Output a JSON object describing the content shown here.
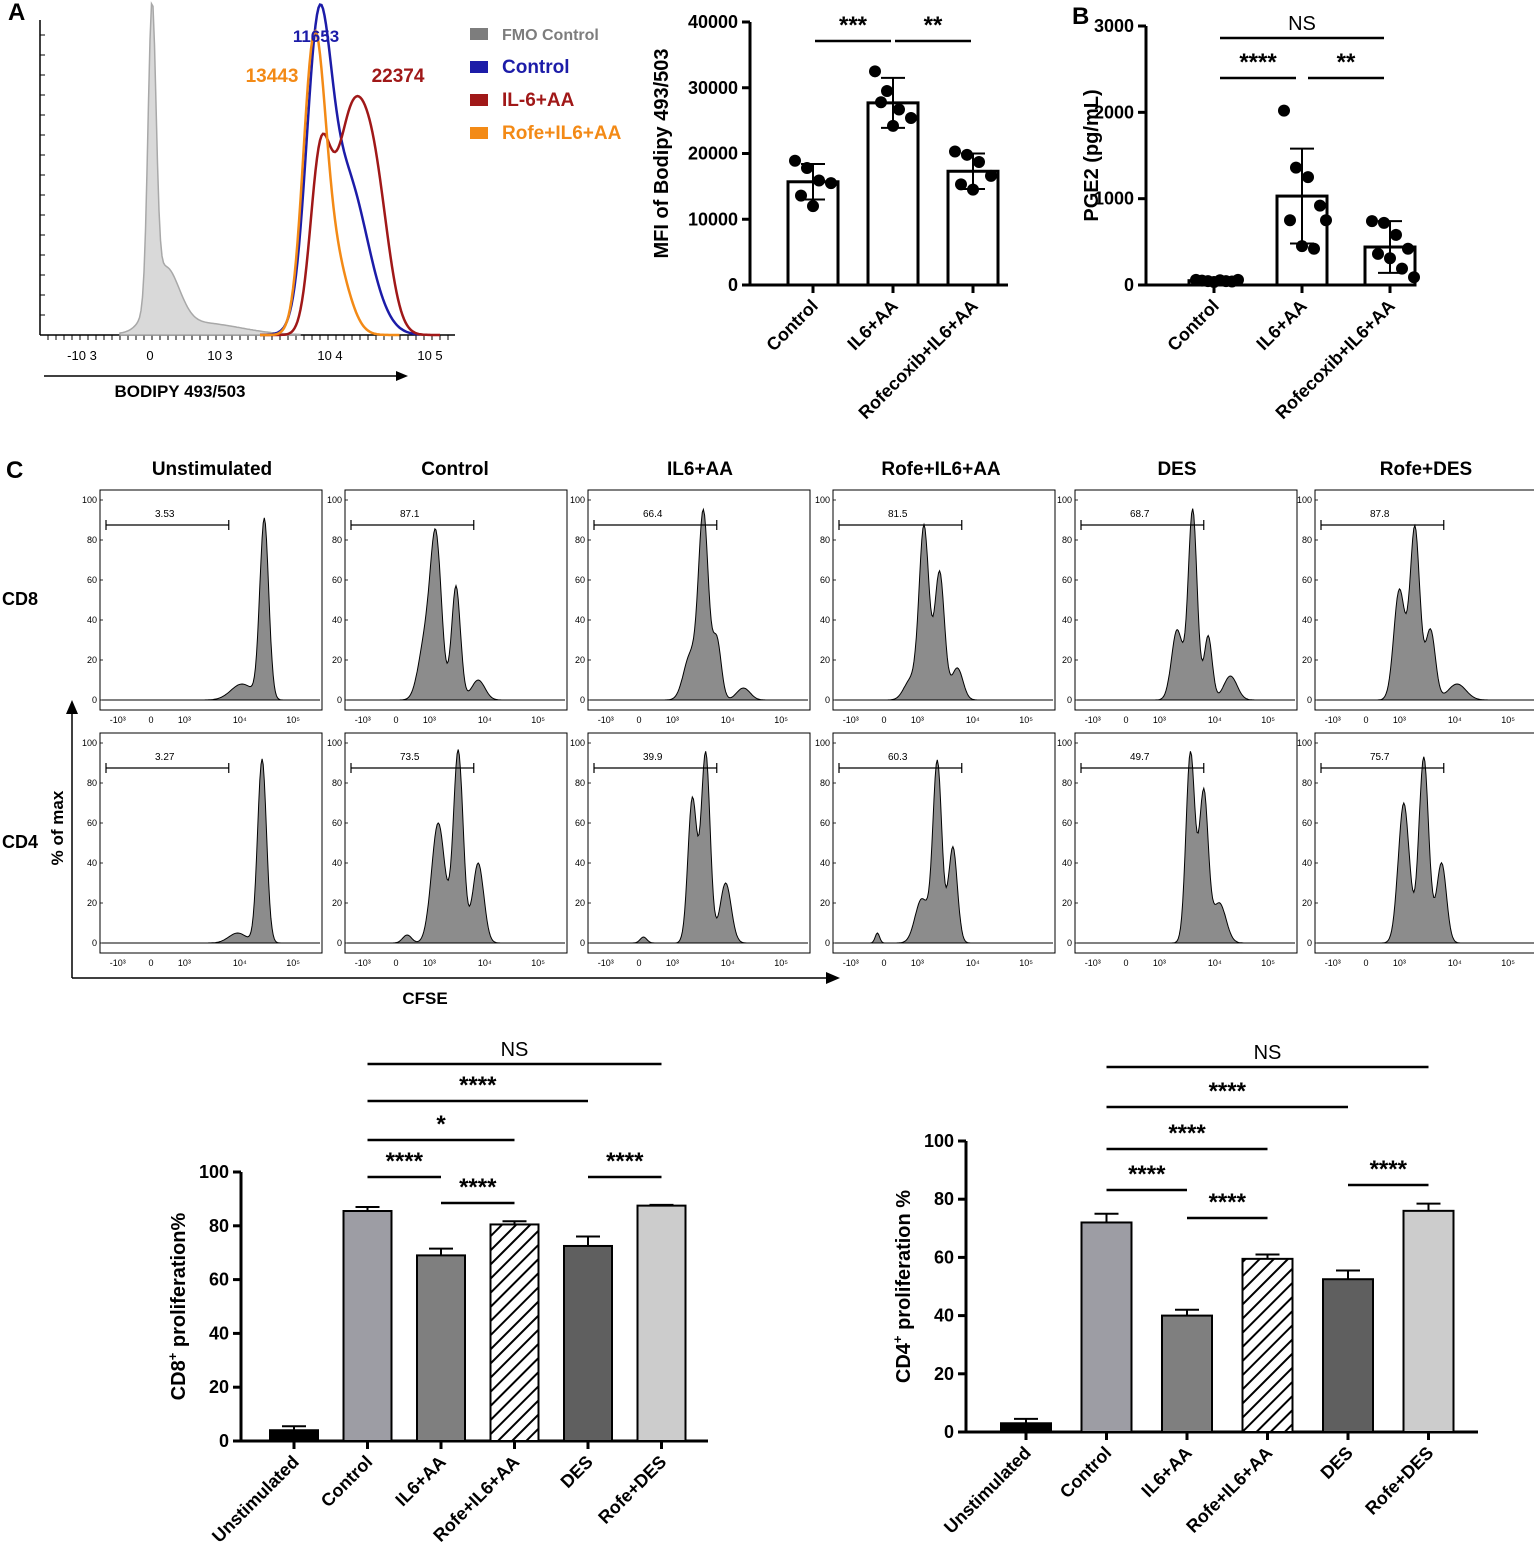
{
  "panel_labels": {
    "a": "A",
    "b": "B",
    "c": "C"
  },
  "colors": {
    "fmo": "#7d7d7d",
    "control": "#1c1ca8",
    "il6aa": "#a01818",
    "rofe": "#f38a16",
    "fmo_fill": "#d9d9d9",
    "hist_fill": "#8c8c8c"
  },
  "chart_data": [
    {
      "id": "bodipy_histogram",
      "type": "histogram",
      "xlabel": "BODIPY 493/503",
      "x_ticks": [
        "-10 3",
        "0",
        "10 3",
        "10 4",
        "10 5"
      ],
      "legend": [
        {
          "label": "FMO Control",
          "color": "#7d7d7d"
        },
        {
          "label": "Control",
          "color": "#1c1ca8"
        },
        {
          "label": "IL-6+AA",
          "color": "#a01818"
        },
        {
          "label": "Rofe+IL6+AA",
          "color": "#f38a16"
        }
      ],
      "peak_labels": [
        {
          "text": "11653",
          "series": "Control"
        },
        {
          "text": "13443",
          "series": "Rofe+IL6+AA"
        },
        {
          "text": "22374",
          "series": "IL-6+AA"
        }
      ]
    },
    {
      "id": "mfi_bar",
      "type": "bar",
      "categories": [
        "Control",
        "IL6+AA",
        "Rofecoxib+IL6+AA"
      ],
      "values": [
        15700,
        27700,
        17300
      ],
      "errors": [
        2700,
        3800,
        2700
      ],
      "points": [
        [
          18900,
          17800,
          15900,
          15500,
          13600,
          12000
        ],
        [
          32500,
          29500,
          26700,
          25400,
          27800,
          24200
        ],
        [
          20300,
          19800,
          18700,
          16600,
          15300,
          14500
        ]
      ],
      "ylabel": "MFI of  Bodipy  493/503",
      "ylim": [
        0,
        40000
      ],
      "yticks": [
        0,
        10000,
        20000,
        30000,
        40000
      ],
      "significance": [
        {
          "from": 0,
          "to": 1,
          "label": "***"
        },
        {
          "from": 1,
          "to": 2,
          "label": "**"
        }
      ]
    },
    {
      "id": "pge2_bar",
      "type": "bar",
      "categories": [
        "Control",
        "IL6+AA",
        "Rofecoxib+IL6+AA"
      ],
      "values": [
        50,
        1030,
        440
      ],
      "errors": [
        20,
        550,
        300
      ],
      "points": [
        [
          60,
          45,
          55,
          40,
          50,
          35,
          45,
          60
        ],
        [
          2020,
          1360,
          1250,
          920,
          750,
          450,
          420,
          750
        ],
        [
          740,
          720,
          580,
          420,
          360,
          310,
          190,
          90
        ]
      ],
      "ylabel": "PGE2 (pg/mL)",
      "ylim": [
        0,
        3000
      ],
      "yticks": [
        0,
        1000,
        2000,
        3000
      ],
      "significance": [
        {
          "from": 0,
          "to": 2,
          "label": "NS"
        },
        {
          "from": 0,
          "to": 1,
          "label": "****"
        },
        {
          "from": 1,
          "to": 2,
          "label": "**"
        }
      ]
    },
    {
      "id": "cfse_histograms",
      "type": "histogram",
      "columns": [
        "Unstimulated",
        "Control",
        "IL6+AA",
        "Rofe+IL6+AA",
        "DES",
        "Rofe+DES"
      ],
      "rows": [
        "CD8",
        "CD4"
      ],
      "gate_values": [
        [
          "3.53",
          "87.1",
          "66.4",
          "81.5",
          "68.7",
          "87.8"
        ],
        [
          "3.27",
          "73.5",
          "39.9",
          "60.3",
          "49.7",
          "75.7"
        ]
      ],
      "y_ticks": [
        "0",
        "20",
        "40",
        "60",
        "80",
        "100"
      ],
      "x_ticks": [
        "-10³",
        "0",
        "10³",
        "10⁴",
        "10⁵"
      ],
      "xlabel": "CFSE",
      "ylabel": "% of max"
    },
    {
      "id": "cd8_bar",
      "type": "bar",
      "categories": [
        "Unstimulated",
        "Control",
        "IL6+AA",
        "Rofe+IL6+AA",
        "DES",
        "Rofe+DES"
      ],
      "values": [
        4,
        85.5,
        69,
        80.5,
        72.5,
        87.5
      ],
      "errors": [
        1.5,
        1.5,
        2.5,
        1.2,
        3.5,
        0.3
      ],
      "ylabel_main": "CD8",
      "ylabel_sup": "+",
      "ylabel_rest": " proliferation%",
      "ylim": [
        0,
        100
      ],
      "yticks": [
        0,
        20,
        40,
        60,
        80,
        100
      ],
      "significance": [
        {
          "from": 1,
          "to": 5,
          "label": "NS"
        },
        {
          "from": 1,
          "to": 4,
          "label": "****"
        },
        {
          "from": 1,
          "to": 3,
          "label": "*"
        },
        {
          "from": 1,
          "to": 2,
          "label": "****"
        },
        {
          "from": 2,
          "to": 3,
          "label": "****"
        },
        {
          "from": 4,
          "to": 5,
          "label": "****"
        }
      ]
    },
    {
      "id": "cd4_bar",
      "type": "bar",
      "categories": [
        "Unstimulated",
        "Control",
        "IL6+AA",
        "Rofe+IL6+AA",
        "DES",
        "Rofe+DES"
      ],
      "values": [
        3,
        72,
        40,
        59.5,
        52.5,
        76
      ],
      "errors": [
        1.5,
        3,
        2,
        1.5,
        3,
        2.5
      ],
      "ylabel_main": "CD4",
      "ylabel_sup": "+",
      "ylabel_rest": " proliferation %",
      "ylim": [
        0,
        100
      ],
      "yticks": [
        0,
        20,
        40,
        60,
        80,
        100
      ],
      "significance": [
        {
          "from": 1,
          "to": 5,
          "label": "NS"
        },
        {
          "from": 1,
          "to": 4,
          "label": "****"
        },
        {
          "from": 1,
          "to": 3,
          "label": "****"
        },
        {
          "from": 1,
          "to": 2,
          "label": "****"
        },
        {
          "from": 2,
          "to": 3,
          "label": "****"
        },
        {
          "from": 4,
          "to": 5,
          "label": "****"
        }
      ]
    }
  ]
}
